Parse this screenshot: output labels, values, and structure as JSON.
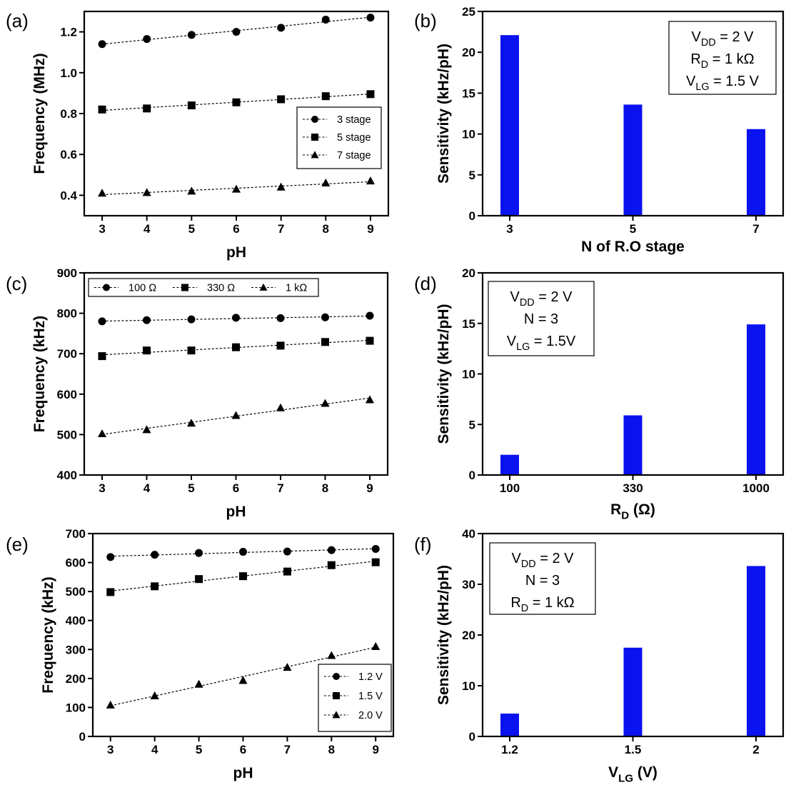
{
  "chart_data": [
    {
      "id": "a",
      "panel_label": "(a)",
      "type": "line",
      "xlabel": "pH",
      "ylabel": "Frequency (MHz)",
      "x": [
        3,
        4,
        5,
        6,
        7,
        8,
        9
      ],
      "xlim": [
        2.6,
        9.4
      ],
      "ylim": [
        0.3,
        1.3
      ],
      "yticks": [
        0.4,
        0.6,
        0.8,
        1.0,
        1.2
      ],
      "ytick_labels": [
        "0.4",
        "0.6",
        "0.8",
        "1.0",
        "1.2"
      ],
      "legend": "right-middle",
      "series": [
        {
          "name": "3 stage",
          "marker": "circle",
          "values": [
            1.14,
            1.165,
            1.185,
            1.2,
            1.22,
            1.26,
            1.27
          ]
        },
        {
          "name": "5 stage",
          "marker": "square",
          "values": [
            0.82,
            0.825,
            0.84,
            0.855,
            0.87,
            0.885,
            0.895
          ]
        },
        {
          "name": "7 stage",
          "marker": "triangle",
          "values": [
            0.41,
            0.413,
            0.42,
            0.43,
            0.44,
            0.46,
            0.47
          ]
        }
      ]
    },
    {
      "id": "b",
      "panel_label": "(b)",
      "type": "bar",
      "xlabel": "N of R.O stage",
      "ylabel": "Sensitivity (kHz/pH)",
      "categories": [
        "3",
        "5",
        "7"
      ],
      "values": [
        22.1,
        13.6,
        10.6
      ],
      "ylim": [
        0,
        25
      ],
      "yticks": [
        0,
        5,
        10,
        15,
        20,
        25
      ],
      "bar_color": "#0a12f0",
      "annotation": [
        {
          "main": "V",
          "sub": "DD",
          "rest": " = 2 V"
        },
        {
          "main": "R",
          "sub": "D",
          "rest": " = 1 kΩ"
        },
        {
          "main": "V",
          "sub": "LG",
          "rest": " = 1.5 V"
        }
      ]
    },
    {
      "id": "c",
      "panel_label": "(c)",
      "type": "line",
      "xlabel": "pH",
      "ylabel": "Frequency (kHz)",
      "x": [
        3,
        4,
        5,
        6,
        7,
        8,
        9
      ],
      "xlim": [
        2.6,
        9.4
      ],
      "ylim": [
        400,
        900
      ],
      "yticks": [
        400,
        500,
        600,
        700,
        800,
        900
      ],
      "ytick_labels": [
        "400",
        "500",
        "600",
        "700",
        "800",
        "900"
      ],
      "legend": "top",
      "series": [
        {
          "name": "100 Ω",
          "marker": "circle",
          "values": [
            780,
            783,
            785,
            789,
            788,
            790,
            794
          ]
        },
        {
          "name": "330 Ω",
          "marker": "square",
          "values": [
            694,
            708,
            708,
            716,
            720,
            729,
            732
          ]
        },
        {
          "name": "1 kΩ",
          "marker": "triangle",
          "values": [
            502,
            512,
            528,
            547,
            566,
            577,
            586
          ]
        }
      ]
    },
    {
      "id": "d",
      "panel_label": "(d)",
      "type": "bar",
      "xlabel": {
        "main": "R",
        "sub": "D",
        "rest": " (Ω)"
      },
      "ylabel": "Sensitivity (kHz/pH)",
      "categories": [
        "100",
        "330",
        "1000"
      ],
      "values": [
        2.0,
        5.9,
        14.9
      ],
      "ylim": [
        0,
        20
      ],
      "yticks": [
        0,
        5,
        10,
        15,
        20
      ],
      "bar_color": "#0a12f0",
      "annotation": [
        {
          "main": "V",
          "sub": "DD",
          "rest": " = 2 V"
        },
        {
          "main": "N = 3",
          "sub": "",
          "rest": ""
        },
        {
          "main": "V",
          "sub": "LG",
          "rest": " = 1.5V"
        }
      ]
    },
    {
      "id": "e",
      "panel_label": "(e)",
      "type": "line",
      "xlabel": "pH",
      "ylabel": "Frequency (kHz)",
      "x": [
        3,
        4,
        5,
        6,
        7,
        8,
        9
      ],
      "xlim": [
        2.6,
        9.4
      ],
      "ylim": [
        0,
        700
      ],
      "yticks": [
        0,
        100,
        200,
        300,
        400,
        500,
        600,
        700
      ],
      "ytick_labels": [
        "0",
        "100",
        "200",
        "300",
        "400",
        "500",
        "600",
        "700"
      ],
      "legend": "bottom-right",
      "series": [
        {
          "name": "1.2 V",
          "marker": "circle",
          "values": [
            619,
            627,
            633,
            637,
            638,
            643,
            647
          ]
        },
        {
          "name": "1.5 V",
          "marker": "square",
          "values": [
            498,
            518,
            543,
            553,
            569,
            591,
            601
          ]
        },
        {
          "name": "2.0 V",
          "marker": "triangle",
          "values": [
            108,
            140,
            180,
            193,
            238,
            279,
            310
          ]
        }
      ]
    },
    {
      "id": "f",
      "panel_label": "(f)",
      "type": "bar",
      "xlabel": {
        "main": "V",
        "sub": "LG",
        "rest": "  (V)"
      },
      "ylabel": "Sensitivity (kHz/pH)",
      "categories": [
        "1.2",
        "1.5",
        "2"
      ],
      "values": [
        4.5,
        17.5,
        33.6
      ],
      "ylim": [
        0,
        40
      ],
      "yticks": [
        0,
        10,
        20,
        30,
        40
      ],
      "bar_color": "#0a12f0",
      "annotation": [
        {
          "main": "V",
          "sub": "DD",
          "rest": " = 2 V"
        },
        {
          "main": "N = 3",
          "sub": "",
          "rest": ""
        },
        {
          "main": "R",
          "sub": "D",
          "rest": " = 1 kΩ"
        }
      ]
    }
  ]
}
